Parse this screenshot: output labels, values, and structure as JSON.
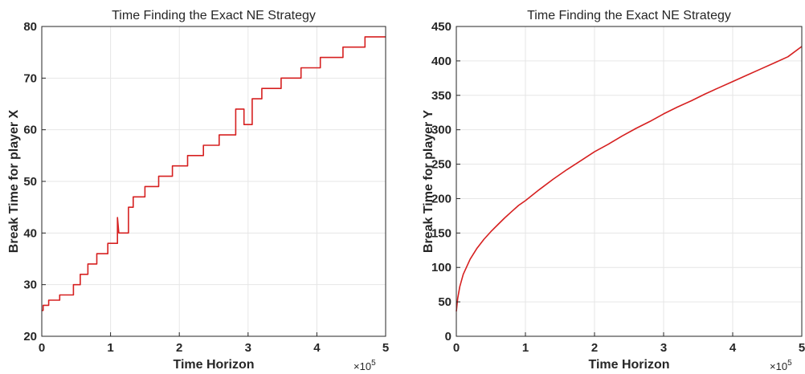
{
  "chart_data": [
    {
      "type": "line",
      "title": "Time Finding the Exact NE Strategy",
      "xlabel": "Time Horizon",
      "ylabel": "Break Time for player X",
      "x_exponent_base": "×10",
      "x_exponent_power": "5",
      "xlim": [
        0,
        5
      ],
      "ylim": [
        20,
        80
      ],
      "xticks": [
        "0",
        "1",
        "2",
        "3",
        "4",
        "5"
      ],
      "yticks": [
        "20",
        "30",
        "40",
        "50",
        "60",
        "70",
        "80"
      ],
      "grid": true,
      "color": "#d62020",
      "series": [
        {
          "x": [
            0,
            0.02,
            0.02,
            0.1,
            0.1,
            0.26,
            0.26,
            0.46,
            0.46,
            0.56,
            0.56,
            0.67,
            0.67,
            0.8,
            0.8,
            0.96,
            0.96,
            1.1,
            1.1,
            1.12,
            1.12,
            1.26,
            1.26,
            1.33,
            1.33,
            1.5,
            1.5,
            1.7,
            1.7,
            1.9,
            1.9,
            2.12,
            2.12,
            2.35,
            2.35,
            2.58,
            2.58,
            2.82,
            2.82,
            2.94,
            2.94,
            3.06,
            3.06,
            3.2,
            3.2,
            3.48,
            3.48,
            3.77,
            3.77,
            4.05,
            4.05,
            4.38,
            4.38,
            4.7,
            4.7,
            5.0
          ],
          "y": [
            25,
            25,
            26,
            26,
            27,
            27,
            28,
            28,
            30,
            30,
            32,
            32,
            34,
            34,
            36,
            36,
            38,
            38,
            43,
            40,
            40,
            40,
            45,
            45,
            47,
            47,
            49,
            49,
            51,
            51,
            53,
            53,
            55,
            55,
            57,
            57,
            59,
            59,
            64,
            64,
            61,
            61,
            66,
            66,
            68,
            68,
            70,
            70,
            72,
            72,
            74,
            74,
            76,
            76,
            78,
            78
          ]
        }
      ]
    },
    {
      "type": "line",
      "title": "Time Finding the Exact NE Strategy",
      "xlabel": "Time Horizon",
      "ylabel": "Break Time for player Y",
      "x_exponent_base": "×10",
      "x_exponent_power": "5",
      "xlim": [
        0,
        5
      ],
      "ylim": [
        0,
        450
      ],
      "xticks": [
        "0",
        "1",
        "2",
        "3",
        "4",
        "5"
      ],
      "yticks": [
        "0",
        "50",
        "100",
        "150",
        "200",
        "250",
        "300",
        "350",
        "400",
        "450"
      ],
      "grid": true,
      "color": "#d62020",
      "series": [
        {
          "x": [
            0,
            0.02,
            0.05,
            0.1,
            0.2,
            0.3,
            0.4,
            0.5,
            0.6,
            0.7,
            0.8,
            0.9,
            1.0,
            1.2,
            1.4,
            1.6,
            1.8,
            2.0,
            2.2,
            2.4,
            2.6,
            2.8,
            3.0,
            3.2,
            3.4,
            3.6,
            3.8,
            4.0,
            4.2,
            4.4,
            4.6,
            4.8,
            5.0
          ],
          "y": [
            36,
            55,
            72,
            90,
            112,
            128,
            141,
            152,
            162,
            172,
            181,
            190,
            197,
            213,
            228,
            242,
            255,
            268,
            279,
            291,
            302,
            312,
            323,
            333,
            342,
            352,
            361,
            370,
            379,
            388,
            397,
            406,
            421
          ]
        }
      ]
    }
  ]
}
